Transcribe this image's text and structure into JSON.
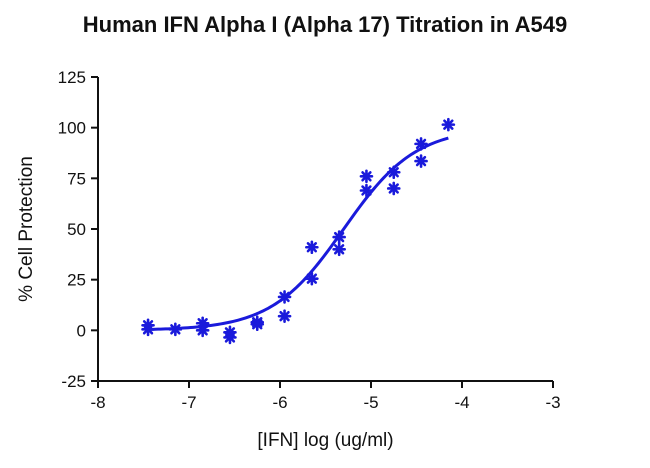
{
  "chart_data": {
    "type": "scatter",
    "title": "Human IFN Alpha I (Alpha 17) Titration in A549",
    "xlabel": "[IFN] log (ug/ml)",
    "ylabel": "% Cell Protection",
    "xlim": [
      -8,
      -3
    ],
    "ylim": [
      -25,
      125
    ],
    "x_ticks": [
      -8,
      -7,
      -6,
      -5,
      -4,
      -3
    ],
    "y_ticks": [
      -25,
      0,
      25,
      50,
      75,
      100,
      125
    ],
    "x_tick_labels": [
      "-8",
      "-7",
      "-6",
      "-5",
      "-4",
      "-3"
    ],
    "y_tick_labels": [
      "-25",
      "0",
      "25",
      "50",
      "75",
      "100",
      "125"
    ],
    "grid": false,
    "legend": "none",
    "marker": "asterisk",
    "color": "#1a1adb",
    "series": [
      {
        "points": [
          [
            -7.45,
            0.5
          ],
          [
            -7.45,
            2.5
          ],
          [
            -7.15,
            0.5
          ],
          [
            -6.85,
            0
          ],
          [
            -6.85,
            3.5
          ],
          [
            -6.55,
            -1
          ],
          [
            -6.55,
            -3.5
          ],
          [
            -6.25,
            3
          ],
          [
            -6.25,
            4
          ],
          [
            -5.95,
            7
          ],
          [
            -5.95,
            16.5
          ],
          [
            -5.65,
            25.5
          ],
          [
            -5.65,
            41
          ],
          [
            -5.35,
            40
          ],
          [
            -5.35,
            46
          ],
          [
            -5.05,
            69
          ],
          [
            -5.05,
            76
          ],
          [
            -4.75,
            70
          ],
          [
            -4.75,
            78
          ],
          [
            -4.45,
            83.5
          ],
          [
            -4.45,
            92
          ],
          [
            -4.15,
            101.5
          ]
        ],
        "fit": {
          "bottom": 0,
          "top": 100,
          "logEC50": -5.3,
          "hillslope": 1.1,
          "x_range": [
            -7.45,
            -4.15
          ]
        }
      }
    ]
  }
}
